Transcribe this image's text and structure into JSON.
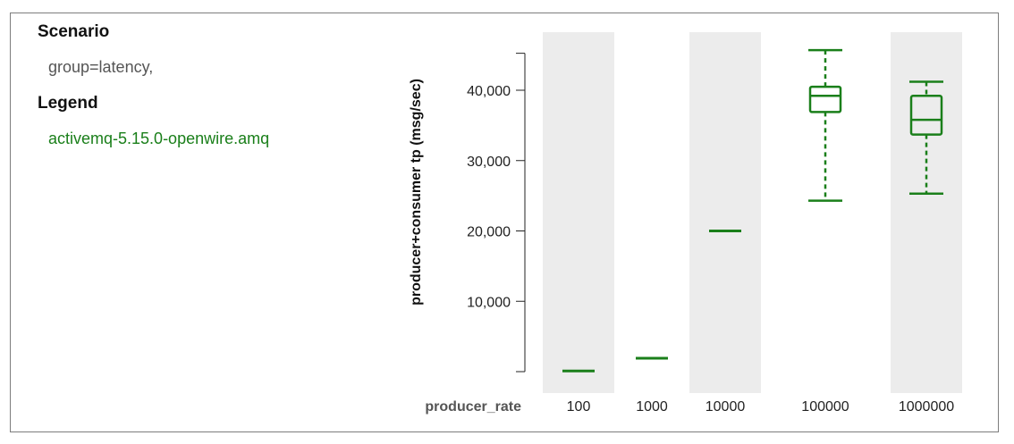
{
  "sidebar": {
    "scenario_heading": "Scenario",
    "scenario_value": "group=latency,",
    "legend_heading": "Legend",
    "legend_items": [
      "activemq-5.15.0-openwire.amq"
    ]
  },
  "colors": {
    "series": "#1a7f1a",
    "band": "#ececec",
    "axis": "#222222",
    "muted_text": "#555555"
  },
  "chart_data": {
    "type": "box",
    "xlabel": "producer_rate",
    "ylabel": "producer+consumer tp (msg/sec)",
    "ylim": [
      0,
      45000
    ],
    "y_ticks": [
      10000,
      20000,
      30000,
      40000
    ],
    "y_tick_labels": [
      "10,000",
      "20,000",
      "30,000",
      "40,000"
    ],
    "grid": false,
    "categories": [
      "100",
      "1000",
      "10000",
      "100000",
      "1000000"
    ],
    "shaded_categories": [
      true,
      false,
      true,
      false,
      true
    ],
    "series": [
      {
        "name": "activemq-5.15.0-openwire.amq",
        "boxes": [
          {
            "min": 100,
            "q1": 100,
            "median": 100,
            "q3": 100,
            "max": 100
          },
          {
            "min": 1900,
            "q1": 1900,
            "median": 1900,
            "q3": 1900,
            "max": 1900
          },
          {
            "min": 20000,
            "q1": 20000,
            "median": 20000,
            "q3": 20000,
            "max": 20000
          },
          {
            "min": 24300,
            "q1": 36900,
            "median": 39200,
            "q3": 40500,
            "max": 45700
          },
          {
            "min": 25300,
            "q1": 33700,
            "median": 35800,
            "q3": 39200,
            "max": 41200
          }
        ]
      }
    ]
  }
}
